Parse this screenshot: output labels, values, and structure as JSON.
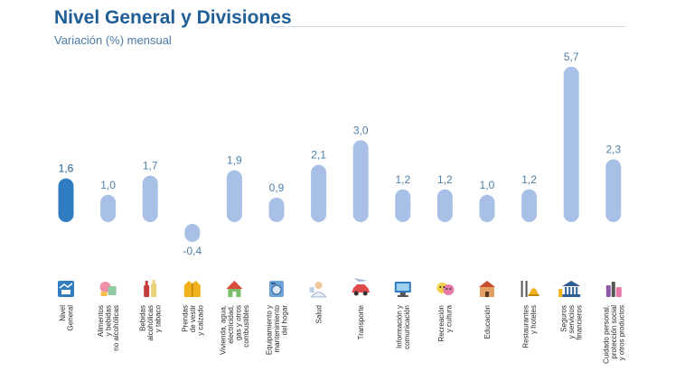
{
  "header": {
    "title": "Nivel General y Divisiones",
    "subtitle": "Variación (%) mensual"
  },
  "colors": {
    "highlight": "#2f7cc0",
    "bar": "#a9c0e6",
    "title": "#1f5e96",
    "value_label": "#4f7fa9"
  },
  "chart_data": {
    "type": "bar",
    "title": "Nivel General y Divisiones",
    "subtitle": "Variación (%) mensual",
    "ylabel": "",
    "xlabel": "",
    "ylim": [
      -0.4,
      5.7
    ],
    "grid": false,
    "legend": "none",
    "categories": [
      [
        "Nivel",
        "General"
      ],
      [
        "Alimentos",
        "y bebidas",
        "no alcohólicas"
      ],
      [
        "Bebidas",
        "alcohólicas",
        "y tabaco"
      ],
      [
        "Prendas",
        "de vestir",
        "y calzado"
      ],
      [
        "Vivienda, agua,",
        "electricidad,",
        "gas y otros",
        "combustibles"
      ],
      [
        "Equipamiento y",
        "mantenimiento",
        "del hogar"
      ],
      [
        "Salud"
      ],
      [
        "Transporte"
      ],
      [
        "Información y",
        "comunicación"
      ],
      [
        "Recreación",
        "y cultura"
      ],
      [
        "Educación"
      ],
      [
        "Restaurantes",
        "y hoteles"
      ],
      [
        "Seguros",
        "y servicios",
        "financieros"
      ],
      [
        "Cuidado personal,",
        "protección social",
        "y otros productos"
      ]
    ],
    "values": [
      1.6,
      1.0,
      1.7,
      -0.4,
      1.9,
      0.9,
      2.1,
      3.0,
      1.2,
      1.2,
      1.0,
      1.2,
      5.7,
      2.3
    ],
    "value_labels": [
      "1,6",
      "1,0",
      "1,7",
      "-0,4",
      "1,9",
      "0,9",
      "2,1",
      "3,0",
      "1,2",
      "1,2",
      "1,0",
      "1,2",
      "5,7",
      "2,3"
    ],
    "highlight_index": 0,
    "icons": [
      "ipc-logo-icon",
      "food-icon",
      "bottle-icon",
      "jacket-icon",
      "house-icon",
      "washing-machine-icon",
      "doctor-icon",
      "car-icon",
      "computer-icon",
      "theater-masks-icon",
      "school-icon",
      "cutlery-icon",
      "bank-icon",
      "toiletries-icon"
    ]
  }
}
